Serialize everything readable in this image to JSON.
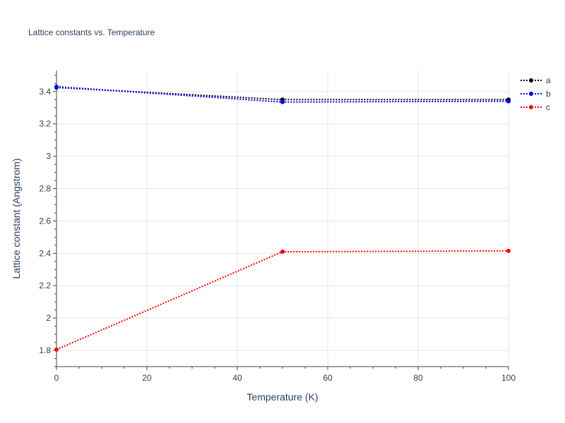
{
  "chart_data": {
    "type": "line",
    "title": "Lattice constants vs. Temperature",
    "xlabel": "Temperature (K)",
    "ylabel": "Lattice constant (Angstrom)",
    "x": [
      0,
      50,
      100
    ],
    "xlim": [
      0,
      100
    ],
    "ylim": [
      1.7,
      3.53
    ],
    "xticks": [
      0,
      20,
      40,
      60,
      80,
      100
    ],
    "yticks": [
      1.8,
      2,
      2.2,
      2.4,
      2.6,
      2.8,
      3,
      3.2,
      3.4
    ],
    "xtick_labels": [
      "0",
      "20",
      "40",
      "60",
      "80",
      "100"
    ],
    "ytick_labels": [
      "1.8",
      "2",
      "2.2",
      "2.4",
      "2.6",
      "2.8",
      "3",
      "3.2",
      "3.4"
    ],
    "grid": true,
    "legend_position": "top-right",
    "series": [
      {
        "name": "a",
        "color": "#000000",
        "values": [
          3.425,
          3.35,
          3.35
        ]
      },
      {
        "name": "b",
        "color": "#0000ff",
        "values": [
          3.43,
          3.335,
          3.34
        ]
      },
      {
        "name": "c",
        "color": "#ff0000",
        "values": [
          1.805,
          2.41,
          2.415
        ]
      }
    ]
  }
}
